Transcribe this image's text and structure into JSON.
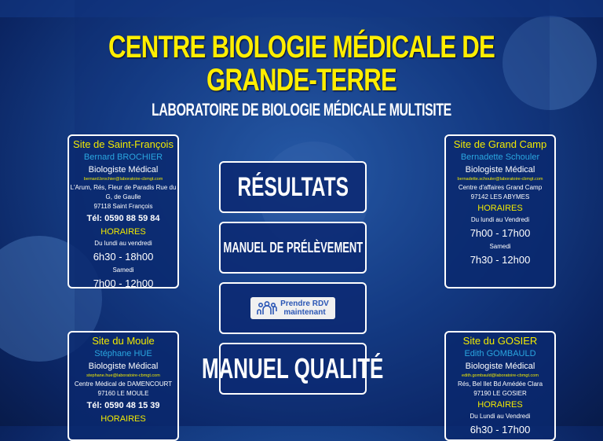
{
  "header": {
    "title_line1": "CENTRE BIOLOGIE MÉDICALE DE",
    "title_line2": "GRANDE-TERRE",
    "subtitle": "LABORATOIRE DE BIOLOGIE MÉDICALE MULTISITE"
  },
  "sites": [
    {
      "name": "Site de Saint-François",
      "biologist": "Bernard BROCHIER",
      "role": "Biologiste Médical",
      "email": "bernard.brochier@laboratoire-cbmgt.com",
      "address1": "L'Arum, Rés, Fleur de Paradis Rue du G, de Gaulle",
      "address2": "97118 Saint François",
      "tel": "Tél: 0590 88 59 84",
      "hours_label": "HORAIRES",
      "weekday_label": "Du lundi au vendredi",
      "weekday_hours": "6h30 - 18h00",
      "saturday_label": "Samedi",
      "saturday_hours": "7h00 - 12h00"
    },
    {
      "name": "Site de Grand Camp",
      "biologist": "Bernadette Schouler",
      "role": "Biologiste Médical",
      "email": "bernadette.schouler@laboratoire-cbmgt.com",
      "address1": "Centre d'affaires Grand Camp",
      "address2": "97142 LES ABYMES",
      "hours_label": "HORAIRES",
      "weekday_label": "Du lundi au Vendredi",
      "weekday_hours": "7h00 - 17h00",
      "saturday_label": "Samedi",
      "saturday_hours": "7h30 - 12h00"
    },
    {
      "name": "Site du Moule",
      "biologist": "Stéphane HUE",
      "role": "Biologiste Médical",
      "email": "stephane.hue@laboratoire-cbmgt.com",
      "address1": "Centre Médical de DAMENCOURT",
      "address2": "97160 LE MOULE",
      "tel": "Tél: 0590 48 15 39",
      "hours_label": "HORAIRES"
    },
    {
      "name": "Site du GOSIER",
      "biologist": "Edith GOMBAULD",
      "role": "Biologiste Médical",
      "email": "edith.gombauld@laboratoire-cbmgt.com",
      "address1": "Rés, Bel Ilet Bd Amédée Clara",
      "address2": "97190 LE GOSIER",
      "hours_label": "HORAIRES",
      "weekday_label": "Du Lundi au Vendredi",
      "weekday_hours": "6h30 - 17h00"
    }
  ],
  "buttons": {
    "results": "RÉSULTATS",
    "manual_sampling": "MANUEL DE PRÉLÈVEMENT",
    "rdv_line1": "Prendre RDV",
    "rdv_line2": "maintenant",
    "quality": "MANUEL QUALITÉ"
  },
  "colors": {
    "title": "#ffee00",
    "background": "#17418a",
    "biologist": "#2aa6e0"
  }
}
